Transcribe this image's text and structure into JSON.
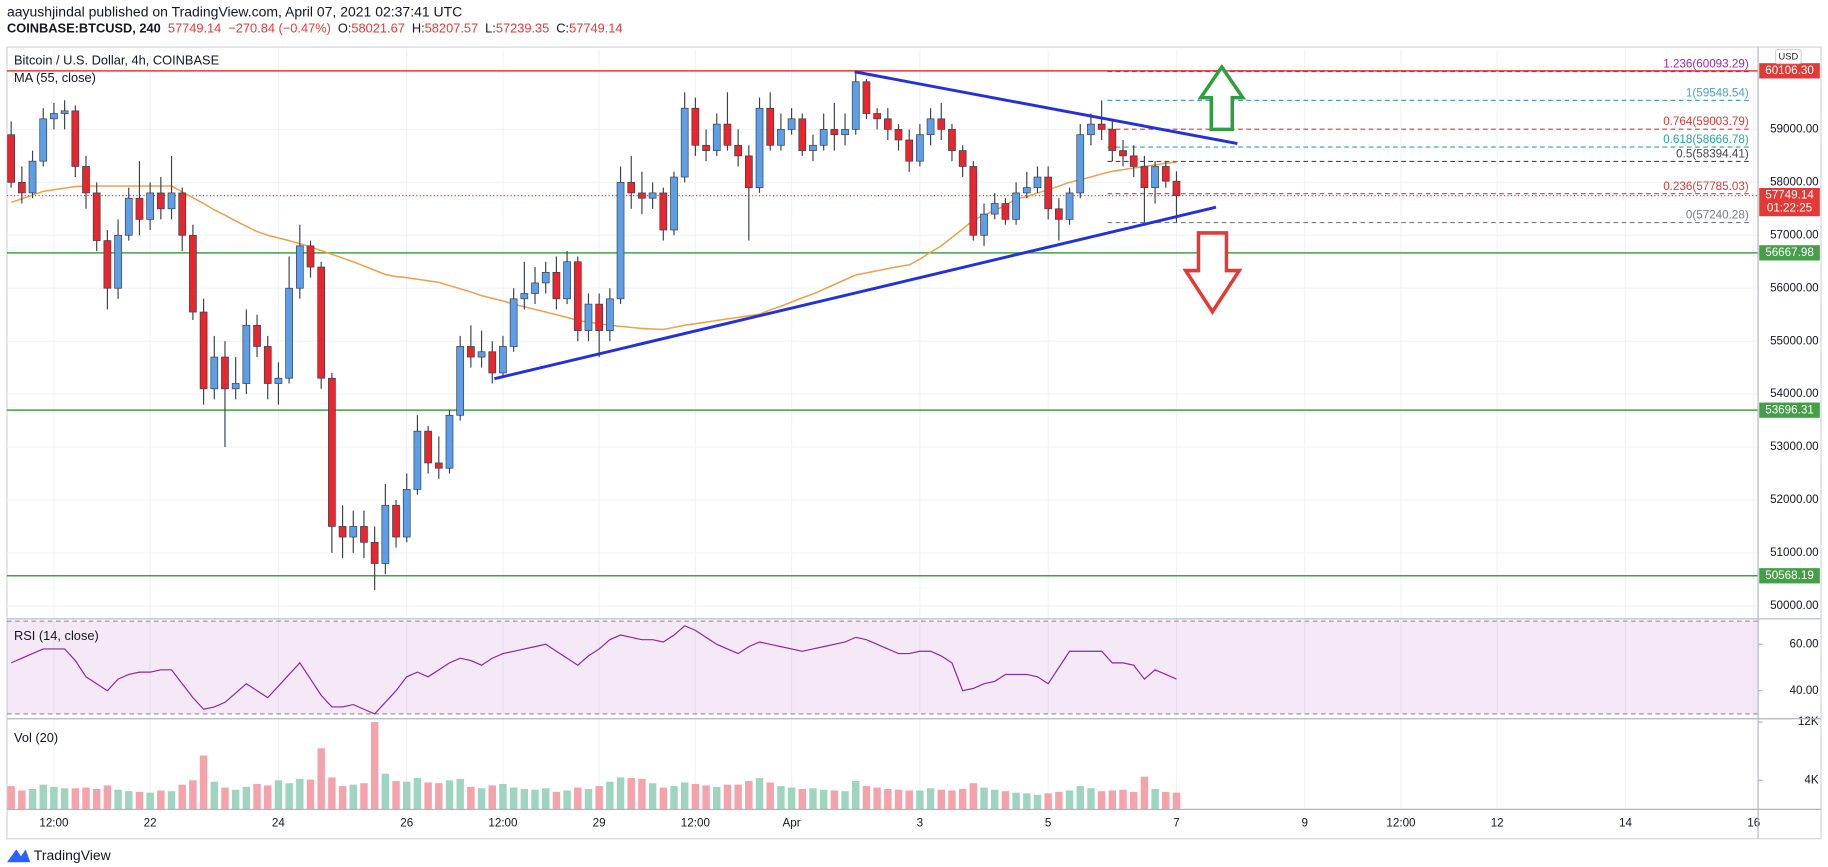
{
  "header": {
    "publisher": "aayushjindal published on TradingView.com, April 07, 2021 02:37:41 UTC",
    "symbol": "COINBASE:BTCUSD, 240",
    "last": "57749.14",
    "change": "−270.84 (−0.47%)",
    "ohlc": [
      {
        "key": "O:",
        "value": "58021.67"
      },
      {
        "key": "H:",
        "value": "58207.57"
      },
      {
        "key": "L:",
        "value": "57239.35"
      },
      {
        "key": "C:",
        "value": "57749.14"
      }
    ]
  },
  "chart_data": [
    {
      "type": "candlestick",
      "title": "Bitcoin / U.S. Dollar, 4h, COINBASE",
      "currency": "USD",
      "up_color": "#5d9ee8",
      "down_color": "#e8262e",
      "wick_color": "#3a3f4d",
      "open": [
        58900,
        58000,
        57800,
        58400,
        59200,
        59300,
        59350,
        58300,
        57800,
        56900,
        56000,
        57000,
        57700,
        57300,
        57800,
        57500,
        57800,
        57000,
        55550,
        54100,
        54700,
        54100,
        54200,
        55300,
        54900,
        54200,
        54300,
        56000,
        56800,
        56400,
        54300,
        51500,
        51300,
        51500,
        51200,
        50800,
        51900,
        51300,
        52200,
        53300,
        52700,
        52600,
        53600,
        54900,
        54700,
        54800,
        54400,
        54900,
        55800,
        55900,
        56100,
        56300,
        55800,
        56500,
        55200,
        55700,
        55200,
        55800,
        58000,
        57800,
        57700,
        57800,
        57100,
        58100,
        59400,
        58700,
        58600,
        59100,
        58700,
        58500,
        57900,
        59400,
        58700,
        59000,
        59200,
        58600,
        58700,
        59000,
        58900,
        59000,
        59900,
        59300,
        59200,
        59000,
        58800,
        58400,
        58900,
        59200,
        59000,
        58600,
        58300,
        57000,
        57400,
        57600,
        57300,
        57800,
        57900,
        58100,
        57500,
        57300,
        57800,
        58900,
        59100,
        59000,
        58600,
        58500,
        58300,
        57900,
        58300,
        58021.67
      ],
      "high": [
        59150,
        58300,
        58600,
        59400,
        59500,
        59550,
        59450,
        58500,
        58000,
        57100,
        57300,
        57900,
        58400,
        58000,
        58100,
        58500,
        57900,
        57200,
        55800,
        55100,
        55000,
        54700,
        55600,
        55500,
        55100,
        54600,
        56600,
        57200,
        56900,
        56500,
        54400,
        51900,
        51800,
        51800,
        51500,
        52300,
        52000,
        52500,
        53600,
        53400,
        53200,
        53700,
        55100,
        55300,
        55200,
        55000,
        55100,
        56000,
        56500,
        56400,
        56500,
        56600,
        56700,
        56600,
        55900,
        55900,
        56000,
        58300,
        58500,
        58200,
        58000,
        57900,
        58200,
        59700,
        59600,
        59000,
        59300,
        59700,
        59000,
        58700,
        59600,
        59700,
        59300,
        59400,
        59300,
        58900,
        59300,
        59500,
        59300,
        60093,
        59950,
        59400,
        59400,
        59100,
        59000,
        59100,
        59400,
        59500,
        59100,
        58700,
        58400,
        57600,
        57800,
        57700,
        58000,
        58200,
        58300,
        58300,
        57700,
        57900,
        59100,
        59300,
        59548.54,
        59200,
        58800,
        58700,
        58500,
        58400,
        58400,
        58207.57
      ],
      "low": [
        57900,
        57600,
        57700,
        58300,
        59000,
        59000,
        58100,
        57500,
        56700,
        55600,
        55800,
        56900,
        57000,
        57100,
        57300,
        57300,
        56700,
        55400,
        53800,
        53900,
        53000,
        53900,
        54000,
        54700,
        53900,
        53800,
        54200,
        55800,
        56200,
        54100,
        51000,
        50900,
        51000,
        50900,
        50300,
        50600,
        51100,
        51200,
        52100,
        52500,
        52400,
        52500,
        53500,
        54500,
        54500,
        54200,
        54300,
        54800,
        55600,
        55700,
        55900,
        55600,
        55700,
        55000,
        55000,
        54700,
        55000,
        55700,
        57500,
        57400,
        57500,
        56900,
        57000,
        58000,
        58500,
        58400,
        58500,
        58600,
        58300,
        56900,
        57800,
        58600,
        58600,
        58900,
        58500,
        58400,
        58600,
        58600,
        58700,
        58900,
        59200,
        59000,
        58800,
        58600,
        58200,
        58300,
        58700,
        58800,
        58400,
        58100,
        56900,
        56800,
        57300,
        57200,
        57200,
        57700,
        57800,
        57300,
        56900,
        57200,
        57700,
        58700,
        58800,
        58400,
        58300,
        58100,
        57240.28,
        57600,
        57900,
        57239.35
      ],
      "close": [
        58000,
        57800,
        58400,
        59200,
        59300,
        59350,
        58300,
        57800,
        56900,
        56000,
        57000,
        57700,
        57300,
        57800,
        57500,
        57800,
        57000,
        55550,
        54100,
        54700,
        54100,
        54200,
        55300,
        54900,
        54200,
        54300,
        56000,
        56800,
        56400,
        54300,
        51500,
        51300,
        51500,
        51200,
        50800,
        51900,
        51300,
        52200,
        53300,
        52700,
        52600,
        53600,
        54900,
        54700,
        54800,
        54400,
        54900,
        55800,
        55900,
        56100,
        56300,
        55800,
        56500,
        55200,
        55700,
        55200,
        55800,
        58000,
        57800,
        57700,
        57800,
        57100,
        58100,
        59400,
        58700,
        58600,
        59100,
        58700,
        58500,
        57900,
        59400,
        58700,
        59000,
        59200,
        58600,
        58700,
        59000,
        58900,
        59000,
        59900,
        59300,
        59200,
        59000,
        58800,
        58400,
        58900,
        59200,
        59000,
        58600,
        58300,
        57000,
        57400,
        57600,
        57300,
        57800,
        57900,
        58100,
        57500,
        57300,
        57800,
        58900,
        59100,
        59000,
        58600,
        58500,
        58300,
        57900,
        58300,
        58021.67,
        57749.14
      ],
      "ma": {
        "name": "MA (55, close)",
        "color": "#f0a04b",
        "values": [
          57620,
          57690,
          57760,
          57830,
          57860,
          57890,
          57920,
          57930,
          57930,
          57930,
          57930,
          57930,
          57930,
          57930,
          57930,
          57930,
          57820,
          57710,
          57600,
          57480,
          57380,
          57270,
          57170,
          57070,
          57000,
          56950,
          56900,
          56840,
          56780,
          56710,
          56640,
          56570,
          56500,
          56420,
          56340,
          56260,
          56220,
          56200,
          56170,
          56140,
          56110,
          56050,
          55990,
          55930,
          55860,
          55810,
          55760,
          55700,
          55650,
          55600,
          55550,
          55500,
          55450,
          55390,
          55360,
          55330,
          55300,
          55280,
          55260,
          55240,
          55230,
          55220,
          55260,
          55300,
          55330,
          55360,
          55390,
          55420,
          55450,
          55480,
          55510,
          55590,
          55660,
          55740,
          55820,
          55890,
          55980,
          56070,
          56160,
          56250,
          56290,
          56330,
          56370,
          56410,
          56440,
          56550,
          56680,
          56800,
          56960,
          57120,
          57290,
          57380,
          57470,
          57560,
          57690,
          57730,
          57800,
          57860,
          57930,
          58000,
          58050,
          58100,
          58160,
          58210,
          58240,
          58270,
          58300,
          58330,
          58360,
          58380
        ]
      },
      "levels": [
        {
          "value": 60106.3,
          "label": "60106.30",
          "color": "#e53935"
        },
        {
          "value": 56667.98,
          "label": "56667.98",
          "color": "#43a047"
        },
        {
          "value": 53696.31,
          "label": "53696.31",
          "color": "#43a047"
        },
        {
          "value": 50568.19,
          "label": "50568.19",
          "color": "#43a047"
        }
      ],
      "fib": [
        {
          "value": 60093.29,
          "label": "1.236(60093.29)",
          "color": "#9c27b0"
        },
        {
          "value": 59548.54,
          "label": "1(59548.54)",
          "color": "#4fa3c7"
        },
        {
          "value": 59003.79,
          "label": "0.764(59003.79)",
          "color": "#e53935"
        },
        {
          "value": 58666.78,
          "label": "0.618(58666.78)",
          "color": "#26a69a"
        },
        {
          "value": 58394.41,
          "label": "0.5(58394.41)",
          "color": "#434651"
        },
        {
          "value": 57785.03,
          "label": "0.236(57785.03)",
          "color": "#e53935"
        },
        {
          "value": 57240.28,
          "label": "0(57240.28)",
          "color": "#787b86"
        }
      ],
      "trendlines": [
        {
          "color": "#2431d8",
          "x": [
            78.9,
            114.7
          ],
          "y": [
            60089,
            58733
          ]
        },
        {
          "color": "#2431d8",
          "x": [
            45.2,
            112.7
          ],
          "y": [
            54290,
            57530
          ]
        }
      ],
      "last_price": {
        "value": 57749.14,
        "label": "57749.14",
        "countdown": "01:22:25",
        "color": "#e53935"
      },
      "xlim": [
        -0.39,
        163.4
      ],
      "xticks": [
        {
          "value": 4,
          "label": "12:00"
        },
        {
          "value": 13,
          "label": "22"
        },
        {
          "value": 25,
          "label": "24"
        },
        {
          "value": 37,
          "label": "26"
        },
        {
          "value": 46,
          "label": "12:00"
        },
        {
          "value": 55,
          "label": "29"
        },
        {
          "value": 64,
          "label": "12:00"
        },
        {
          "value": 73,
          "label": "Apr"
        },
        {
          "value": 85,
          "label": "3"
        },
        {
          "value": 97,
          "label": "5"
        },
        {
          "value": 109,
          "label": "7"
        },
        {
          "value": 121,
          "label": "9"
        },
        {
          "value": 130,
          "label": "12:00"
        },
        {
          "value": 139,
          "label": "12"
        },
        {
          "value": 151,
          "label": "14"
        },
        {
          "value": 163,
          "label": "16"
        }
      ],
      "ylim": [
        49778,
        60511
      ],
      "yticks": [
        {
          "value": 50000,
          "label": "50000.00"
        },
        {
          "value": 51000,
          "label": "51000.00"
        },
        {
          "value": 52000,
          "label": "52000.00"
        },
        {
          "value": 53000,
          "label": "53000.00"
        },
        {
          "value": 54000,
          "label": "54000.00"
        },
        {
          "value": 55000,
          "label": "55000.00"
        },
        {
          "value": 56000,
          "label": "56000.00"
        },
        {
          "value": 57000,
          "label": "57000.00"
        },
        {
          "value": 58000,
          "label": "58000.00"
        },
        {
          "value": 59000,
          "label": "59000.00"
        }
      ],
      "grid": true
    },
    {
      "type": "line",
      "title": "RSI (14, close)",
      "color": "#8e24aa",
      "band": [
        30,
        70
      ],
      "band_color": "#9c27b0",
      "values": [
        52,
        54,
        56,
        58,
        58,
        58,
        53,
        46,
        43,
        40,
        45,
        47,
        48,
        48,
        49,
        49,
        43,
        37,
        32,
        33,
        35,
        39,
        43,
        40,
        37,
        42,
        47,
        52,
        45,
        38,
        33,
        33,
        34,
        32,
        30,
        35,
        40,
        46,
        48,
        46,
        49,
        52,
        54,
        53,
        51,
        54,
        56,
        57,
        58,
        59,
        60,
        57,
        54,
        51,
        55,
        58,
        62,
        64,
        63,
        62,
        62,
        61,
        64,
        68,
        66,
        63,
        60,
        58,
        56,
        59,
        61,
        60,
        59,
        58,
        57,
        58,
        59,
        60,
        61,
        63,
        62,
        60,
        58,
        56,
        56,
        57,
        57,
        55,
        52,
        40,
        41,
        43,
        44,
        47,
        47,
        47,
        46,
        43,
        50,
        57,
        57,
        57,
        57,
        52,
        52,
        51,
        45,
        49,
        47,
        45
      ],
      "ylim": [
        28.4,
        70.5
      ],
      "yticks": [
        {
          "value": 60,
          "label": "60.00"
        },
        {
          "value": 40,
          "label": "40.00"
        }
      ]
    },
    {
      "type": "bar",
      "title": "Vol (20)",
      "up_color": "#9fd5c0",
      "down_color": "#f5a3ab",
      "values": [
        3200,
        2600,
        2800,
        3400,
        3100,
        2900,
        2900,
        3000,
        2800,
        3300,
        2700,
        2500,
        2400,
        2300,
        2600,
        2500,
        3400,
        4000,
        7400,
        3800,
        3000,
        2700,
        3100,
        3500,
        3300,
        4000,
        3600,
        4200,
        4100,
        8400,
        4400,
        3200,
        3400,
        3600,
        12000,
        4900,
        3900,
        3800,
        4300,
        3700,
        3600,
        4000,
        4200,
        3100,
        2900,
        3300,
        3500,
        3000,
        2800,
        2700,
        2900,
        2400,
        2600,
        3000,
        2800,
        3200,
        3800,
        4400,
        4300,
        4200,
        3600,
        3000,
        3200,
        3700,
        3500,
        3300,
        3100,
        3400,
        3400,
        3900,
        4300,
        3700,
        3200,
        3000,
        2800,
        2900,
        2700,
        2600,
        2500,
        3900,
        3200,
        3000,
        2800,
        2700,
        2600,
        2600,
        2900,
        2700,
        2600,
        2800,
        3600,
        3000,
        2700,
        2500,
        2300,
        2200,
        2000,
        2200,
        2400,
        2600,
        3200,
        2900,
        2500,
        2600,
        2700,
        2400,
        4500,
        2800,
        2400,
        2300
      ],
      "ylim": [
        0,
        12300
      ],
      "yticks": [
        {
          "value": 4000,
          "label": "4K"
        },
        {
          "value": 12000,
          "label": "12K"
        }
      ]
    }
  ],
  "footer": {
    "brand": "TradingView"
  }
}
